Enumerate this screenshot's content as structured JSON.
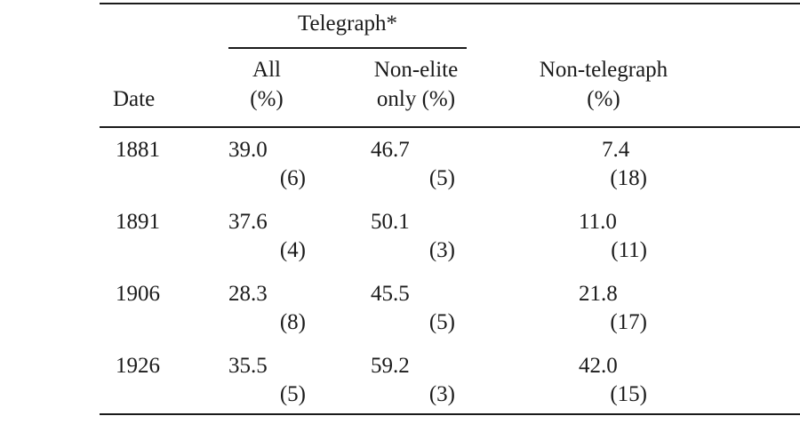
{
  "header": {
    "group_label": "Telegraph*",
    "date": "Date",
    "all_line1": "All",
    "all_line2": "(%)",
    "nonelite_line1": "Non-elite",
    "nonelite_line2": "only (%)",
    "nontelegraph_line1": "Non-telegraph",
    "nontelegraph_line2": "(%)"
  },
  "rows": [
    {
      "date": "1881",
      "all": "39.0",
      "all_n": "(6)",
      "nonelite": "46.7",
      "nonelite_n": "(5)",
      "nontelegraph": "7.4",
      "nontelegraph_n": "(18)"
    },
    {
      "date": "1891",
      "all": "37.6",
      "all_n": "(4)",
      "nonelite": "50.1",
      "nonelite_n": "(3)",
      "nontelegraph": "11.0",
      "nontelegraph_n": "(11)"
    },
    {
      "date": "1906",
      "all": "28.3",
      "all_n": "(8)",
      "nonelite": "45.5",
      "nonelite_n": "(5)",
      "nontelegraph": "21.8",
      "nontelegraph_n": "(17)"
    },
    {
      "date": "1926",
      "all": "35.5",
      "all_n": "(5)",
      "nonelite": "59.2",
      "nonelite_n": "(3)",
      "nontelegraph": "42.0",
      "nontelegraph_n": "(15)"
    }
  ]
}
